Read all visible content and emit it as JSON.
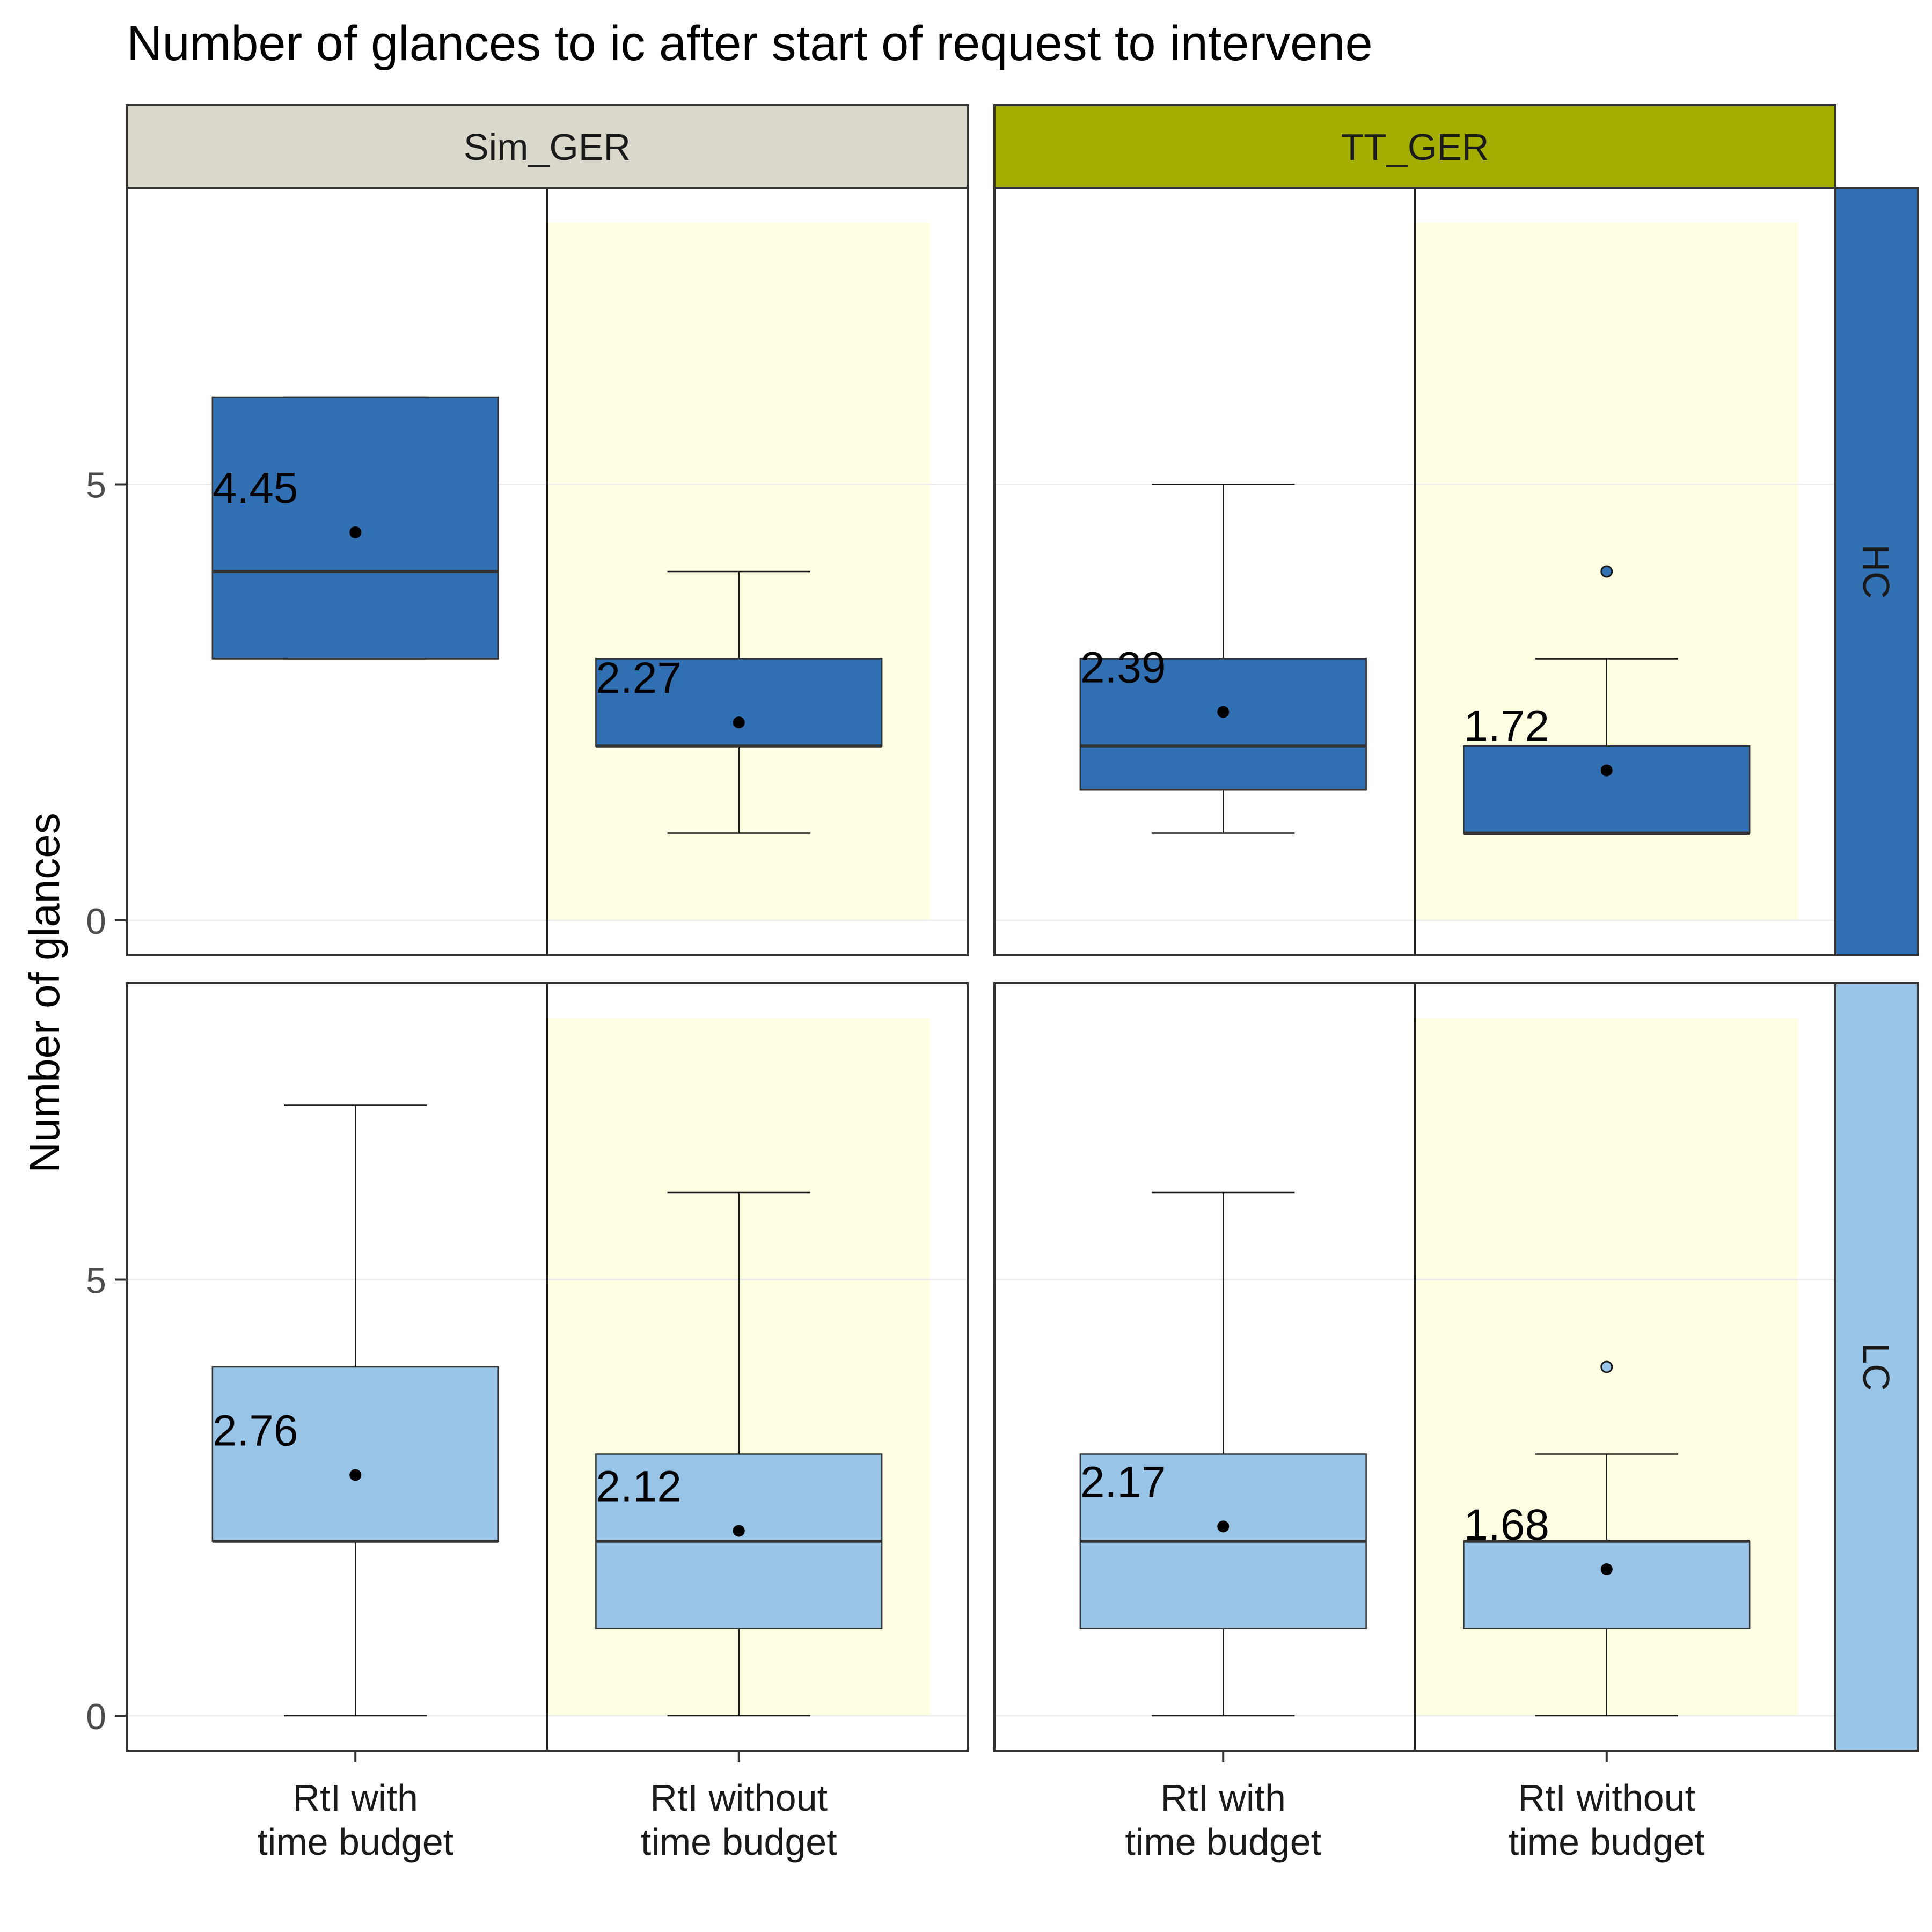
{
  "chart_data": {
    "type": "boxplot",
    "title": "Number of glances to ic after start of request to intervene",
    "xlabel": "",
    "ylabel": "Number of glances",
    "ylim": [
      -0.4,
      8.4
    ],
    "y_ticks": [
      0,
      5
    ],
    "grid": true,
    "categories": [
      {
        "line1": "RtI with",
        "line2": "time budget"
      },
      {
        "line1": "RtI without",
        "line2": "time budget"
      }
    ],
    "columns": [
      {
        "label": "Sim_GER",
        "strip_color": "#d9d8ca"
      },
      {
        "label": "TT_GER",
        "strip_color": "#a3ae00"
      }
    ],
    "rows": [
      {
        "label": "HC",
        "strip_color": "#3171b3",
        "box_color": "#3171b3"
      },
      {
        "label": "LC",
        "strip_color": "#98c4e8",
        "box_color": "#98c4e8"
      }
    ],
    "highlight": {
      "category_index": 1,
      "color": "#ffffe3",
      "ymin": 0,
      "ymax": 8
    },
    "panels": [
      {
        "column": 0,
        "row": 0,
        "boxes": [
          {
            "q1": 3,
            "median": 4,
            "q3": 6,
            "whisker_low": 3,
            "whisker_high": 6,
            "mean": 4.45,
            "mean_label": "4.45",
            "outliers": []
          },
          {
            "q1": 2,
            "median": 2,
            "q3": 3,
            "whisker_low": 1,
            "whisker_high": 4,
            "mean": 2.27,
            "mean_label": "2.27",
            "outliers": []
          }
        ]
      },
      {
        "column": 1,
        "row": 0,
        "boxes": [
          {
            "q1": 1.5,
            "median": 2,
            "q3": 3,
            "whisker_low": 1,
            "whisker_high": 5,
            "mean": 2.39,
            "mean_label": "2.39",
            "outliers": []
          },
          {
            "q1": 1,
            "median": 1,
            "q3": 2,
            "whisker_low": 1,
            "whisker_high": 3,
            "mean": 1.72,
            "mean_label": "1.72",
            "outliers": [
              4
            ]
          }
        ]
      },
      {
        "column": 0,
        "row": 1,
        "boxes": [
          {
            "q1": 2,
            "median": 2,
            "q3": 4,
            "whisker_low": 0,
            "whisker_high": 7,
            "mean": 2.76,
            "mean_label": "2.76",
            "outliers": []
          },
          {
            "q1": 1,
            "median": 2,
            "q3": 3,
            "whisker_low": 0,
            "whisker_high": 6,
            "mean": 2.12,
            "mean_label": "2.12",
            "outliers": []
          }
        ]
      },
      {
        "column": 1,
        "row": 1,
        "boxes": [
          {
            "q1": 1,
            "median": 2,
            "q3": 3,
            "whisker_low": 0,
            "whisker_high": 6,
            "mean": 2.17,
            "mean_label": "2.17",
            "outliers": []
          },
          {
            "q1": 1,
            "median": 2,
            "q3": 2,
            "whisker_low": 0,
            "whisker_high": 3,
            "mean": 1.68,
            "mean_label": "1.68",
            "outliers": [
              4
            ]
          }
        ]
      }
    ]
  }
}
